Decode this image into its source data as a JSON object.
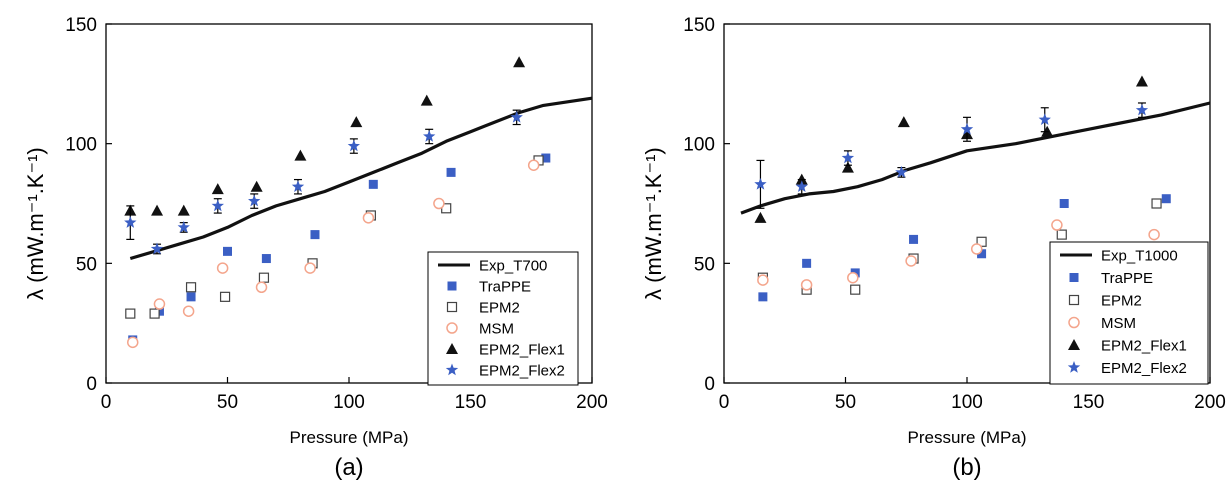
{
  "chart_data": [
    {
      "type": "scatter",
      "panel_label": "(a)",
      "xlabel": "Pressure (MPa)",
      "ylabel": "λ (mW.m⁻¹.K⁻¹)",
      "xlim": [
        0,
        200
      ],
      "ylim": [
        0,
        150
      ],
      "xticks": [
        0,
        50,
        100,
        150,
        200
      ],
      "yticks": [
        0,
        50,
        100,
        150
      ],
      "grid": false,
      "legend_position": "bottom-right",
      "series": [
        {
          "name": "Exp_T700",
          "marker": "line",
          "color": "#111111",
          "points": [
            [
              10,
              52
            ],
            [
              20,
              55
            ],
            [
              30,
              58
            ],
            [
              40,
              61
            ],
            [
              50,
              65
            ],
            [
              60,
              70
            ],
            [
              70,
              74
            ],
            [
              80,
              77
            ],
            [
              90,
              80
            ],
            [
              100,
              84
            ],
            [
              110,
              88
            ],
            [
              120,
              92
            ],
            [
              130,
              96
            ],
            [
              140,
              101
            ],
            [
              150,
              105
            ],
            [
              160,
              109
            ],
            [
              170,
              113
            ],
            [
              180,
              116
            ],
            [
              200,
              119
            ]
          ]
        },
        {
          "name": "TraPPE",
          "marker": "filled-square",
          "color": "#3b5fc4",
          "points": [
            [
              11,
              18
            ],
            [
              22,
              30
            ],
            [
              35,
              36
            ],
            [
              50,
              55
            ],
            [
              66,
              52
            ],
            [
              86,
              62
            ],
            [
              110,
              83
            ],
            [
              142,
              88
            ],
            [
              181,
              94
            ]
          ]
        },
        {
          "name": "EPM2",
          "marker": "open-square",
          "color": "#444444",
          "points": [
            [
              10,
              29
            ],
            [
              20,
              29
            ],
            [
              35,
              40
            ],
            [
              49,
              36
            ],
            [
              65,
              44
            ],
            [
              85,
              50
            ],
            [
              109,
              70
            ],
            [
              140,
              73
            ],
            [
              178,
              93
            ]
          ]
        },
        {
          "name": "MSM",
          "marker": "open-circle",
          "color": "#f4a58c",
          "points": [
            [
              11,
              17
            ],
            [
              22,
              33
            ],
            [
              34,
              30
            ],
            [
              48,
              48
            ],
            [
              64,
              40
            ],
            [
              84,
              48
            ],
            [
              108,
              69
            ],
            [
              137,
              75
            ],
            [
              176,
              91
            ]
          ]
        },
        {
          "name": "EPM2_Flex1",
          "marker": "filled-triangle",
          "color": "#111111",
          "points": [
            [
              10,
              72
            ],
            [
              21,
              72
            ],
            [
              32,
              72
            ],
            [
              46,
              81
            ],
            [
              62,
              82
            ],
            [
              80,
              95
            ],
            [
              103,
              109
            ],
            [
              132,
              118
            ],
            [
              170,
              134
            ]
          ]
        },
        {
          "name": "EPM2_Flex2",
          "marker": "star",
          "color": "#3b5fc4",
          "points": [
            [
              10,
              67
            ],
            [
              21,
              56
            ],
            [
              32,
              65
            ],
            [
              46,
              74
            ],
            [
              61,
              76
            ],
            [
              79,
              82
            ],
            [
              102,
              99
            ],
            [
              133,
              103
            ],
            [
              169,
              111
            ]
          ],
          "errors": [
            7,
            2,
            2,
            3,
            3,
            3,
            3,
            3,
            3
          ]
        }
      ]
    },
    {
      "type": "scatter",
      "panel_label": "(b)",
      "xlabel": "Pressure (MPa)",
      "ylabel": "λ (mW.m⁻¹.K⁻¹)",
      "xlim": [
        0,
        200
      ],
      "ylim": [
        0,
        150
      ],
      "xticks": [
        0,
        50,
        100,
        150,
        200
      ],
      "yticks": [
        0,
        50,
        100,
        150
      ],
      "grid": false,
      "legend_position": "bottom-right",
      "series": [
        {
          "name": "Exp_T1000",
          "marker": "line",
          "color": "#111111",
          "points": [
            [
              7,
              71
            ],
            [
              15,
              74
            ],
            [
              25,
              77
            ],
            [
              35,
              79
            ],
            [
              45,
              80
            ],
            [
              55,
              82
            ],
            [
              65,
              85
            ],
            [
              75,
              89
            ],
            [
              85,
              92
            ],
            [
              100,
              97
            ],
            [
              120,
              100
            ],
            [
              140,
              104
            ],
            [
              160,
              108
            ],
            [
              180,
              112
            ],
            [
              200,
              117
            ]
          ]
        },
        {
          "name": "TraPPE",
          "marker": "filled-square",
          "color": "#3b5fc4",
          "points": [
            [
              16,
              36
            ],
            [
              34,
              50
            ],
            [
              54,
              46
            ],
            [
              78,
              60
            ],
            [
              106,
              54
            ],
            [
              140,
              75
            ],
            [
              182,
              77
            ]
          ]
        },
        {
          "name": "EPM2",
          "marker": "open-square",
          "color": "#444444",
          "points": [
            [
              16,
              44
            ],
            [
              34,
              39
            ],
            [
              54,
              39
            ],
            [
              78,
              52
            ],
            [
              106,
              59
            ],
            [
              139,
              62
            ],
            [
              178,
              75
            ]
          ]
        },
        {
          "name": "MSM",
          "marker": "open-circle",
          "color": "#f4a58c",
          "points": [
            [
              16,
              43
            ],
            [
              34,
              41
            ],
            [
              53,
              44
            ],
            [
              77,
              51
            ],
            [
              104,
              56
            ],
            [
              137,
              66
            ],
            [
              177,
              62
            ]
          ]
        },
        {
          "name": "EPM2_Flex1",
          "marker": "filled-triangle",
          "color": "#111111",
          "points": [
            [
              15,
              69
            ],
            [
              32,
              85
            ],
            [
              51,
              90
            ],
            [
              74,
              109
            ],
            [
              100,
              104
            ],
            [
              133,
              105
            ],
            [
              172,
              126
            ]
          ]
        },
        {
          "name": "EPM2_Flex2",
          "marker": "star",
          "color": "#3b5fc4",
          "points": [
            [
              15,
              83
            ],
            [
              32,
              82
            ],
            [
              51,
              94
            ],
            [
              73,
              88
            ],
            [
              100,
              106
            ],
            [
              132,
              110
            ],
            [
              172,
              114
            ]
          ],
          "errors": [
            10,
            3,
            3,
            2,
            5,
            5,
            3
          ]
        }
      ]
    }
  ]
}
